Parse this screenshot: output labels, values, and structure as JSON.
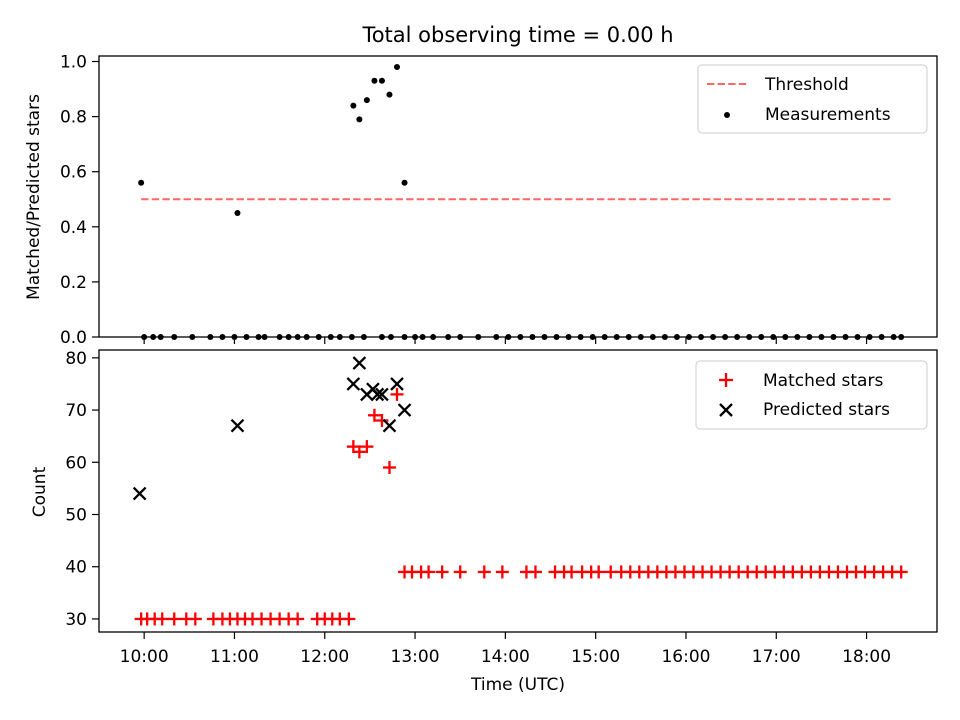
{
  "title": "Total observing time = 0.00 h",
  "chart_data": [
    {
      "type": "scatter",
      "ylabel": "Matched/Predicted stars",
      "ylim": [
        0,
        1.02
      ],
      "xlim_hours": [
        9.5,
        18.78
      ],
      "yticks": [
        0.0,
        0.2,
        0.4,
        0.6,
        0.8,
        1.0
      ],
      "ytick_labels": [
        "0.0",
        "0.2",
        "0.4",
        "0.6",
        "0.8",
        "1.0"
      ],
      "legend": "top-right",
      "threshold": {
        "name": "Threshold",
        "value": 0.5,
        "x_range": [
          "09:58",
          "18:18"
        ],
        "color": "#ff6666",
        "style": "dashed"
      },
      "series": [
        {
          "name": "Measurements",
          "color": "#000000",
          "marker": "dot",
          "points": [
            [
              "09:58",
              0.56
            ],
            [
              "10:00",
              0.0
            ],
            [
              "10:06",
              0.0
            ],
            [
              "10:11",
              0.0
            ],
            [
              "10:20",
              0.0
            ],
            [
              "10:32",
              0.0
            ],
            [
              "10:44",
              0.0
            ],
            [
              "10:52",
              0.0
            ],
            [
              "11:00",
              0.0
            ],
            [
              "11:08",
              0.0
            ],
            [
              "11:16",
              0.0
            ],
            [
              "11:20",
              0.0
            ],
            [
              "11:30",
              0.0
            ],
            [
              "11:36",
              0.0
            ],
            [
              "11:42",
              0.0
            ],
            [
              "11:48",
              0.0
            ],
            [
              "11:56",
              0.0
            ],
            [
              "12:04",
              0.0
            ],
            [
              "12:10",
              0.0
            ],
            [
              "12:18",
              0.0
            ],
            [
              "12:26",
              0.0
            ],
            [
              "12:38",
              0.0
            ],
            [
              "12:44",
              0.0
            ],
            [
              "12:53",
              0.0
            ],
            [
              "13:00",
              0.0
            ],
            [
              "13:05",
              0.0
            ],
            [
              "13:12",
              0.0
            ],
            [
              "13:22",
              0.0
            ],
            [
              "13:30",
              0.0
            ],
            [
              "13:42",
              0.0
            ],
            [
              "13:54",
              0.0
            ],
            [
              "14:02",
              0.0
            ],
            [
              "14:10",
              0.0
            ],
            [
              "14:18",
              0.0
            ],
            [
              "14:26",
              0.0
            ],
            [
              "14:34",
              0.0
            ],
            [
              "14:42",
              0.0
            ],
            [
              "14:50",
              0.0
            ],
            [
              "14:58",
              0.0
            ],
            [
              "15:06",
              0.0
            ],
            [
              "15:14",
              0.0
            ],
            [
              "15:22",
              0.0
            ],
            [
              "15:30",
              0.0
            ],
            [
              "15:38",
              0.0
            ],
            [
              "15:46",
              0.0
            ],
            [
              "15:54",
              0.0
            ],
            [
              "16:02",
              0.0
            ],
            [
              "16:10",
              0.0
            ],
            [
              "16:18",
              0.0
            ],
            [
              "16:26",
              0.0
            ],
            [
              "16:34",
              0.0
            ],
            [
              "16:42",
              0.0
            ],
            [
              "16:50",
              0.0
            ],
            [
              "16:58",
              0.0
            ],
            [
              "17:06",
              0.0
            ],
            [
              "17:14",
              0.0
            ],
            [
              "17:22",
              0.0
            ],
            [
              "17:30",
              0.0
            ],
            [
              "17:38",
              0.0
            ],
            [
              "17:46",
              0.0
            ],
            [
              "17:54",
              0.0
            ],
            [
              "18:02",
              0.0
            ],
            [
              "18:10",
              0.0
            ],
            [
              "18:18",
              0.0
            ],
            [
              "18:23",
              0.0
            ],
            [
              "11:02",
              0.45
            ],
            [
              "12:19",
              0.84
            ],
            [
              "12:23",
              0.79
            ],
            [
              "12:28",
              0.86
            ],
            [
              "12:33",
              0.93
            ],
            [
              "12:38",
              0.93
            ],
            [
              "12:43",
              0.88
            ],
            [
              "12:48",
              0.98
            ],
            [
              "12:53",
              0.56
            ]
          ]
        }
      ]
    },
    {
      "type": "scatter",
      "xlabel": "Time (UTC)",
      "ylabel": "Count",
      "ylim": [
        27.5,
        81.5
      ],
      "xlim_hours": [
        9.5,
        18.78
      ],
      "yticks": [
        30,
        40,
        50,
        60,
        70,
        80
      ],
      "ytick_labels": [
        "30",
        "40",
        "50",
        "60",
        "70",
        "80"
      ],
      "xticks": [
        "10:00",
        "11:00",
        "12:00",
        "13:00",
        "14:00",
        "15:00",
        "16:00",
        "17:00",
        "18:00"
      ],
      "legend": "top-right",
      "series": [
        {
          "name": "Matched stars",
          "color": "#ff0000",
          "marker": "plus",
          "points": [
            [
              "09:58",
              30
            ],
            [
              "10:02",
              30
            ],
            [
              "10:07",
              30
            ],
            [
              "10:12",
              30
            ],
            [
              "10:20",
              30
            ],
            [
              "10:28",
              30
            ],
            [
              "10:34",
              30
            ],
            [
              "10:46",
              30
            ],
            [
              "10:52",
              30
            ],
            [
              "10:57",
              30
            ],
            [
              "11:02",
              30
            ],
            [
              "11:07",
              30
            ],
            [
              "11:12",
              30
            ],
            [
              "11:18",
              30
            ],
            [
              "11:24",
              30
            ],
            [
              "11:30",
              30
            ],
            [
              "11:36",
              30
            ],
            [
              "11:42",
              30
            ],
            [
              "11:55",
              30
            ],
            [
              "12:00",
              30
            ],
            [
              "12:05",
              30
            ],
            [
              "12:10",
              30
            ],
            [
              "12:16",
              30
            ],
            [
              "12:19",
              63
            ],
            [
              "12:23",
              62
            ],
            [
              "12:28",
              63
            ],
            [
              "12:33",
              69
            ],
            [
              "12:38",
              68
            ],
            [
              "12:43",
              59
            ],
            [
              "12:48",
              73
            ],
            [
              "12:53",
              39
            ],
            [
              "12:58",
              39
            ],
            [
              "13:04",
              39
            ],
            [
              "13:09",
              39
            ],
            [
              "13:18",
              39
            ],
            [
              "13:30",
              39
            ],
            [
              "13:46",
              39
            ],
            [
              "13:58",
              39
            ],
            [
              "14:14",
              39
            ],
            [
              "14:20",
              39
            ],
            [
              "14:33",
              39
            ],
            [
              "14:39",
              39
            ],
            [
              "14:44",
              39
            ],
            [
              "14:51",
              39
            ],
            [
              "14:57",
              39
            ],
            [
              "15:02",
              39
            ],
            [
              "15:10",
              39
            ],
            [
              "15:17",
              39
            ],
            [
              "15:23",
              39
            ],
            [
              "15:29",
              39
            ],
            [
              "15:35",
              39
            ],
            [
              "15:41",
              39
            ],
            [
              "15:47",
              39
            ],
            [
              "15:53",
              39
            ],
            [
              "15:59",
              39
            ],
            [
              "16:05",
              39
            ],
            [
              "16:11",
              39
            ],
            [
              "16:17",
              39
            ],
            [
              "16:23",
              39
            ],
            [
              "16:29",
              39
            ],
            [
              "16:35",
              39
            ],
            [
              "16:41",
              39
            ],
            [
              "16:47",
              39
            ],
            [
              "16:53",
              39
            ],
            [
              "16:59",
              39
            ],
            [
              "17:05",
              39
            ],
            [
              "17:11",
              39
            ],
            [
              "17:17",
              39
            ],
            [
              "17:23",
              39
            ],
            [
              "17:29",
              39
            ],
            [
              "17:35",
              39
            ],
            [
              "17:41",
              39
            ],
            [
              "17:47",
              39
            ],
            [
              "17:53",
              39
            ],
            [
              "17:59",
              39
            ],
            [
              "18:05",
              39
            ],
            [
              "18:11",
              39
            ],
            [
              "18:17",
              39
            ],
            [
              "18:23",
              39
            ]
          ]
        },
        {
          "name": "Predicted stars",
          "color": "#000000",
          "marker": "x",
          "points": [
            [
              "09:57",
              54
            ],
            [
              "11:02",
              67
            ],
            [
              "12:19",
              75
            ],
            [
              "12:23",
              79
            ],
            [
              "12:28",
              73
            ],
            [
              "12:32",
              74
            ],
            [
              "12:35",
              73
            ],
            [
              "12:38",
              73
            ],
            [
              "12:43",
              67
            ],
            [
              "12:48",
              75
            ],
            [
              "12:53",
              70
            ]
          ]
        }
      ]
    }
  ]
}
